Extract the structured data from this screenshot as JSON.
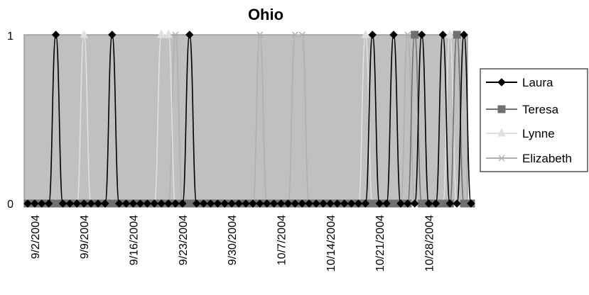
{
  "chart_data": {
    "type": "line",
    "title": "Ohio",
    "xlabel": "",
    "ylabel": "",
    "ylim": [
      0,
      1
    ],
    "y_ticks": [
      "0",
      "1"
    ],
    "x_start_date": "2004-09-01",
    "x_end_date": "2004-11-03",
    "x_ticks": [
      "9/2/2004",
      "9/9/2004",
      "9/16/2004",
      "9/23/2004",
      "9/30/2004",
      "10/7/2004",
      "10/14/2004",
      "10/21/2004",
      "10/28/2004"
    ],
    "grid": false,
    "legend_position": "right",
    "plot_background": "#c0c0c0",
    "series": [
      {
        "name": "Laura",
        "color": "#000000",
        "marker": "diamond",
        "peak_dates": [
          "2004-09-05",
          "2004-09-13",
          "2004-09-24",
          "2004-10-20",
          "2004-10-23",
          "2004-10-27",
          "2004-10-30",
          "2004-11-02"
        ]
      },
      {
        "name": "Teresa",
        "color": "#707070",
        "marker": "square",
        "peak_dates": [
          "2004-10-26",
          "2004-11-01"
        ]
      },
      {
        "name": "Lynne",
        "color": "#e0e0e0",
        "marker": "triangle",
        "peak_dates": [
          "2004-09-09",
          "2004-09-20",
          "2004-09-21",
          "2004-10-19",
          "2004-10-26",
          "2004-10-31"
        ]
      },
      {
        "name": "Elizabeth",
        "color": "#b0b0b0",
        "marker": "x",
        "peak_dates": [
          "2004-09-22",
          "2004-10-04",
          "2004-10-09",
          "2004-10-10",
          "2004-10-25",
          "2004-11-01"
        ]
      }
    ]
  }
}
